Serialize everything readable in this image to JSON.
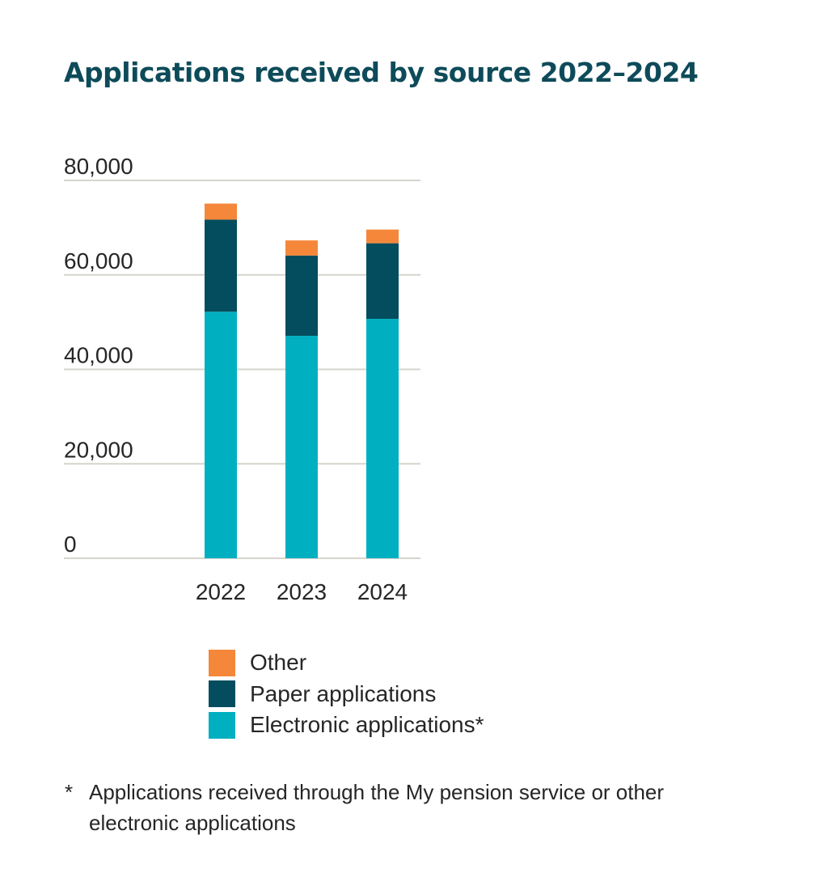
{
  "title": "Applications received by source 2022–2024",
  "colors": {
    "other": "#f5873a",
    "paper": "#044d5e",
    "electronic": "#00b0c1",
    "grid": "#d6d4cc",
    "title": "#0e4b5a",
    "text": "#262626"
  },
  "chart_data": {
    "type": "bar",
    "stacked": true,
    "title": "Applications received by source 2022–2024",
    "categories": [
      "2022",
      "2023",
      "2024"
    ],
    "series": [
      {
        "name": "Electronic applications*",
        "values": [
          52200,
          47100,
          50700
        ],
        "color": "#00b0c1"
      },
      {
        "name": "Paper applications",
        "values": [
          19500,
          17000,
          16000
        ],
        "color": "#044d5e"
      },
      {
        "name": "Other",
        "values": [
          3400,
          3200,
          2900
        ],
        "color": "#f5873a"
      }
    ],
    "y_ticks": [
      "0",
      "20,000",
      "40,000",
      "60,000",
      "80,000"
    ],
    "ylim": [
      0,
      80000
    ],
    "grid": true,
    "legend_position": "bottom"
  },
  "legend": [
    {
      "label": "Other",
      "color": "#f5873a"
    },
    {
      "label": "Paper applications",
      "color": "#044d5e"
    },
    {
      "label": "Electronic applications*",
      "color": "#00b0c1"
    }
  ],
  "footnote": {
    "mark": "*",
    "text": "Applications received through the My pension service or other electronic applications"
  }
}
